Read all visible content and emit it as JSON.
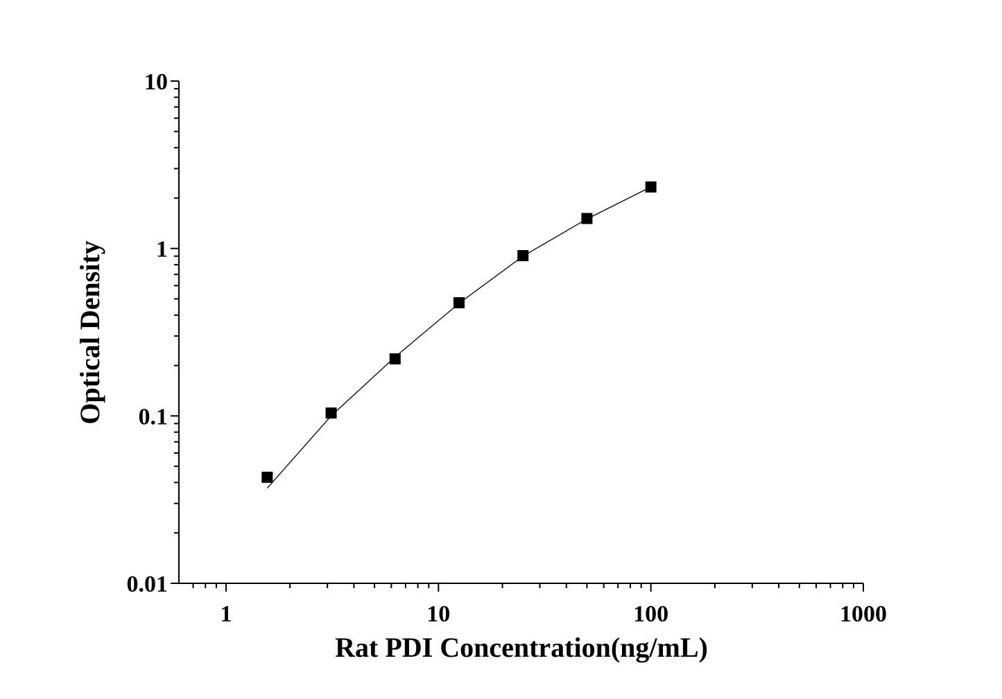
{
  "chart_data": {
    "type": "scatter",
    "xlabel": "Rat PDI Concentration(ng/mL)",
    "ylabel": "Optical Density",
    "xscale": "log",
    "yscale": "log",
    "xlim": [
      0.6,
      1000
    ],
    "ylim": [
      0.01,
      10
    ],
    "xticks": [
      1,
      10,
      100,
      1000
    ],
    "yticks": [
      0.01,
      0.1,
      1,
      10
    ],
    "xminorticks": [
      0.7,
      0.8,
      0.9,
      2,
      3,
      4,
      5,
      6,
      7,
      8,
      9,
      20,
      30,
      40,
      50,
      60,
      70,
      80,
      90,
      200,
      300,
      400,
      500,
      600,
      700,
      800,
      900
    ],
    "yminorticks": [
      0.02,
      0.03,
      0.04,
      0.05,
      0.06,
      0.07,
      0.08,
      0.09,
      0.2,
      0.3,
      0.4,
      0.5,
      0.6,
      0.7,
      0.8,
      0.9,
      2,
      3,
      4,
      5,
      6,
      7,
      8,
      9
    ],
    "color": "#000000",
    "x": [
      1.5625,
      3.125,
      6.25,
      12.5,
      25,
      50,
      100
    ],
    "values": [
      0.043,
      0.104,
      0.219,
      0.474,
      0.906,
      1.51,
      2.33
    ],
    "fit": {
      "x": [
        1.5625,
        3.125,
        6.25,
        12.5,
        25,
        50,
        100
      ],
      "values": [
        0.037,
        0.1,
        0.225,
        0.47,
        0.9,
        1.5,
        2.33
      ]
    }
  }
}
